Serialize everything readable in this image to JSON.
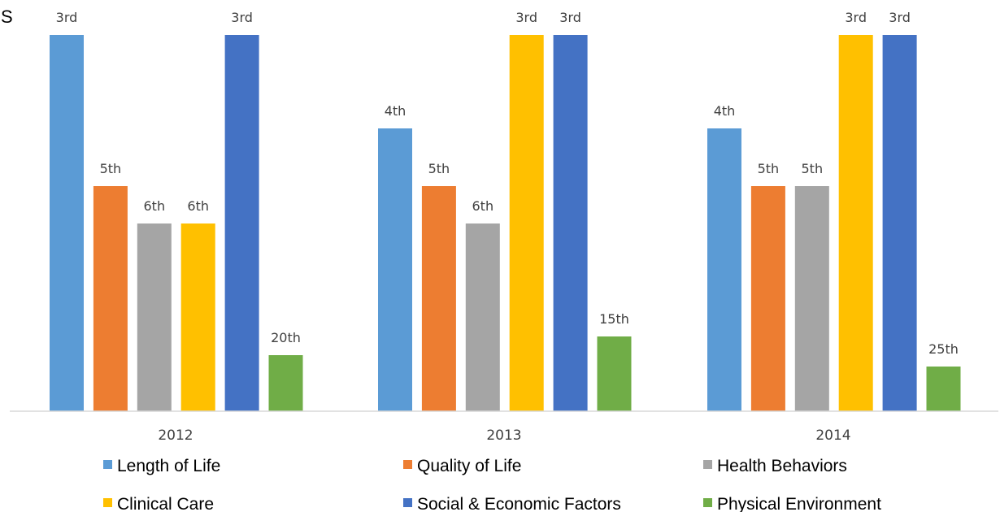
{
  "corner_text": "S",
  "chart_data": {
    "type": "bar",
    "categories": [
      "2012",
      "2013",
      "2014"
    ],
    "series": [
      {
        "name": "Length of Life",
        "color": "#5B9BD5",
        "values": [
          3,
          4,
          4
        ],
        "labels": [
          "3rd",
          "4th",
          "4th"
        ]
      },
      {
        "name": "Quality of Life",
        "color": "#ED7D31",
        "values": [
          5,
          5,
          5
        ],
        "labels": [
          "5th",
          "5th",
          "5th"
        ]
      },
      {
        "name": "Health Behaviors",
        "color": "#A5A5A5",
        "values": [
          6,
          6,
          5
        ],
        "labels": [
          "6th",
          "6th",
          "5th"
        ]
      },
      {
        "name": "Clinical Care",
        "color": "#FFC000",
        "values": [
          6,
          3,
          3
        ],
        "labels": [
          "6th",
          "3rd",
          "3rd"
        ]
      },
      {
        "name": "Social & Economic Factors",
        "color": "#4472C4",
        "values": [
          3,
          3,
          3
        ],
        "labels": [
          "3rd",
          "3rd",
          "3rd"
        ]
      },
      {
        "name": "Physical Environment",
        "color": "#70AD47",
        "values": [
          20,
          15,
          25
        ],
        "labels": [
          "20th",
          "15th",
          "25th"
        ]
      }
    ],
    "title": "",
    "xlabel": "",
    "ylabel": "",
    "axis_direction": "reversed",
    "grid": false,
    "legend_position": "bottom"
  }
}
